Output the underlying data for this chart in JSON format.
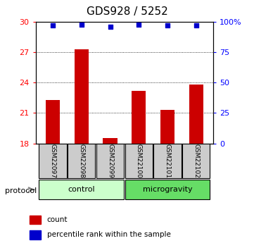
{
  "title": "GDS928 / 5252",
  "samples": [
    "GSM22097",
    "GSM22098",
    "GSM22099",
    "GSM22100",
    "GSM22101",
    "GSM22102"
  ],
  "bar_values": [
    22.3,
    27.3,
    18.5,
    23.2,
    21.3,
    23.8
  ],
  "percentile_values": [
    97,
    98,
    96,
    98,
    97,
    97
  ],
  "ylim_left": [
    18,
    30
  ],
  "ylim_right": [
    0,
    100
  ],
  "yticks_left": [
    18,
    21,
    24,
    27,
    30
  ],
  "yticks_right": [
    0,
    25,
    50,
    75,
    100
  ],
  "ytick_labels_right": [
    "0",
    "25",
    "50",
    "75",
    "100%"
  ],
  "bar_color": "#cc0000",
  "dot_color": "#0000cc",
  "grid_ticks": [
    21,
    24,
    27
  ],
  "groups": [
    {
      "label": "control",
      "start": 0,
      "end": 2,
      "color": "#ccffcc"
    },
    {
      "label": "microgravity",
      "start": 3,
      "end": 5,
      "color": "#66dd66"
    }
  ],
  "legend_count_label": "count",
  "legend_pct_label": "percentile rank within the sample",
  "protocol_label": "protocol",
  "bar_width": 0.5,
  "sample_box_color": "#cccccc"
}
